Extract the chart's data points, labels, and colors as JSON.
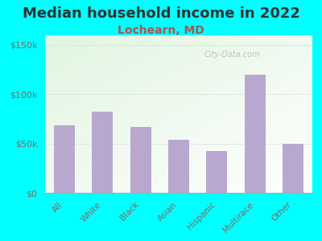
{
  "title": "Median household income in 2022",
  "subtitle": "Lochearn, MD",
  "categories": [
    "All",
    "White",
    "Black",
    "Asian",
    "Hispanic",
    "Multirace",
    "Other"
  ],
  "values": [
    68000,
    82000,
    67000,
    54000,
    42000,
    120000,
    50000
  ],
  "bar_color": "#b8a8d0",
  "title_fontsize": 13,
  "title_color": "#333333",
  "subtitle_fontsize": 10,
  "subtitle_color": "#aa5555",
  "background_outer": "#00ffff",
  "ylim": [
    0,
    160000
  ],
  "yticks": [
    0,
    50000,
    100000,
    150000
  ],
  "ytick_labels": [
    "$0",
    "$50k",
    "$100k",
    "$150k"
  ],
  "watermark": "City-Data.com",
  "tick_color": "#886666"
}
